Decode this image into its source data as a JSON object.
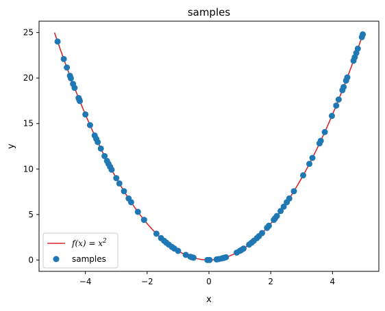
{
  "chart_data": {
    "type": "scatter",
    "title": "samples",
    "xlabel": "x",
    "ylabel": "y",
    "xlim": [
      -5.5,
      5.5
    ],
    "ylim": [
      -1.25,
      26.25
    ],
    "xticks": [
      -4,
      -2,
      0,
      2,
      4
    ],
    "yticks": [
      0,
      5,
      10,
      15,
      20,
      25
    ],
    "xtick_labels": [
      "−4",
      "−2",
      "0",
      "2",
      "4"
    ],
    "ytick_labels": [
      "0",
      "5",
      "10",
      "15",
      "20",
      "25"
    ],
    "grid": false,
    "legend": {
      "placement": "lower-left"
    },
    "line_series": {
      "name_prefix": "f(x) = x",
      "name_exponent": "2",
      "function": "x^2",
      "x_range": [
        -5,
        5
      ],
      "color": "#d62728"
    },
    "scatter_series": {
      "name": "samples",
      "color": "#1f77b4",
      "x": [
        -4.9,
        -4.7,
        -4.6,
        -4.5,
        -4.47,
        -4.4,
        -4.35,
        -4.22,
        -4.2,
        -4.18,
        -4.0,
        -3.85,
        -3.7,
        -3.65,
        -3.6,
        -3.5,
        -3.38,
        -3.3,
        -3.25,
        -3.2,
        -3.15,
        -3.0,
        -2.9,
        -2.75,
        -2.6,
        -2.52,
        -2.3,
        -2.1,
        -1.7,
        -1.55,
        -1.45,
        -1.38,
        -1.3,
        -1.2,
        -1.12,
        -1.0,
        -0.75,
        -0.6,
        -0.55,
        -0.5,
        -0.05,
        0.02,
        0.25,
        0.32,
        0.42,
        0.48,
        0.55,
        0.9,
        1.0,
        1.05,
        1.12,
        1.3,
        1.38,
        1.45,
        1.55,
        1.62,
        1.72,
        1.88,
        1.94,
        2.1,
        2.14,
        2.2,
        2.32,
        2.42,
        2.52,
        2.6,
        2.75,
        3.05,
        3.25,
        3.35,
        3.58,
        3.62,
        3.75,
        3.98,
        4.12,
        4.2,
        4.32,
        4.36,
        4.44,
        4.48,
        4.68,
        4.72,
        4.77,
        4.82,
        4.95,
        4.98
      ]
    }
  }
}
